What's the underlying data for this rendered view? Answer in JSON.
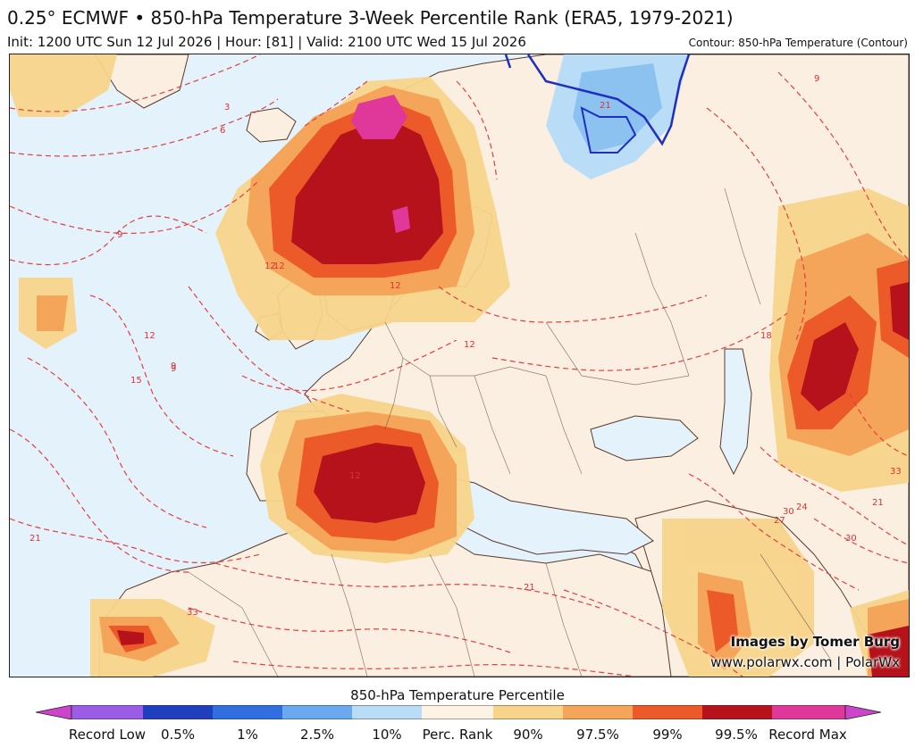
{
  "header": {
    "title": "0.25° ECMWF • 850-hPa Temperature 3-Week Percentile Rank (ERA5, 1979-2021)",
    "subtitle": "Init: 1200 UTC Sun 12 Jul 2026 | Hour: [81] | Valid: 2100 UTC Wed 15 Jul 2026",
    "contour_note": "Contour: 850-hPa Temperature (Contour)"
  },
  "credits": {
    "line1": "Images by Tomer Burg",
    "line2": "www.polarwx.com | PolarWx"
  },
  "contour_labels": [
    "3",
    "6",
    "9",
    "12",
    "9",
    "12",
    "12",
    "12",
    "15",
    "12",
    "12",
    "18",
    "21",
    "21",
    "21",
    "24",
    "27",
    "30",
    "33",
    "33",
    "30",
    "9",
    "21",
    "9"
  ],
  "legend": {
    "title": "850-hPa Temperature Percentile",
    "colors": [
      "#9b5de5",
      "#1f3fbf",
      "#2f6fe0",
      "#6aa8ef",
      "#b9dcf7",
      "#fdf3e4",
      "#f7d48a",
      "#f4a55a",
      "#ec5a2a",
      "#b5121b",
      "#e0389a",
      "#cc44cc"
    ],
    "labels": [
      "Record Low",
      "0.5%",
      "1%",
      "2.5%",
      "10%",
      "Perc. Rank",
      "90%",
      "97.5%",
      "99%",
      "99.5%",
      "Record Max"
    ]
  }
}
